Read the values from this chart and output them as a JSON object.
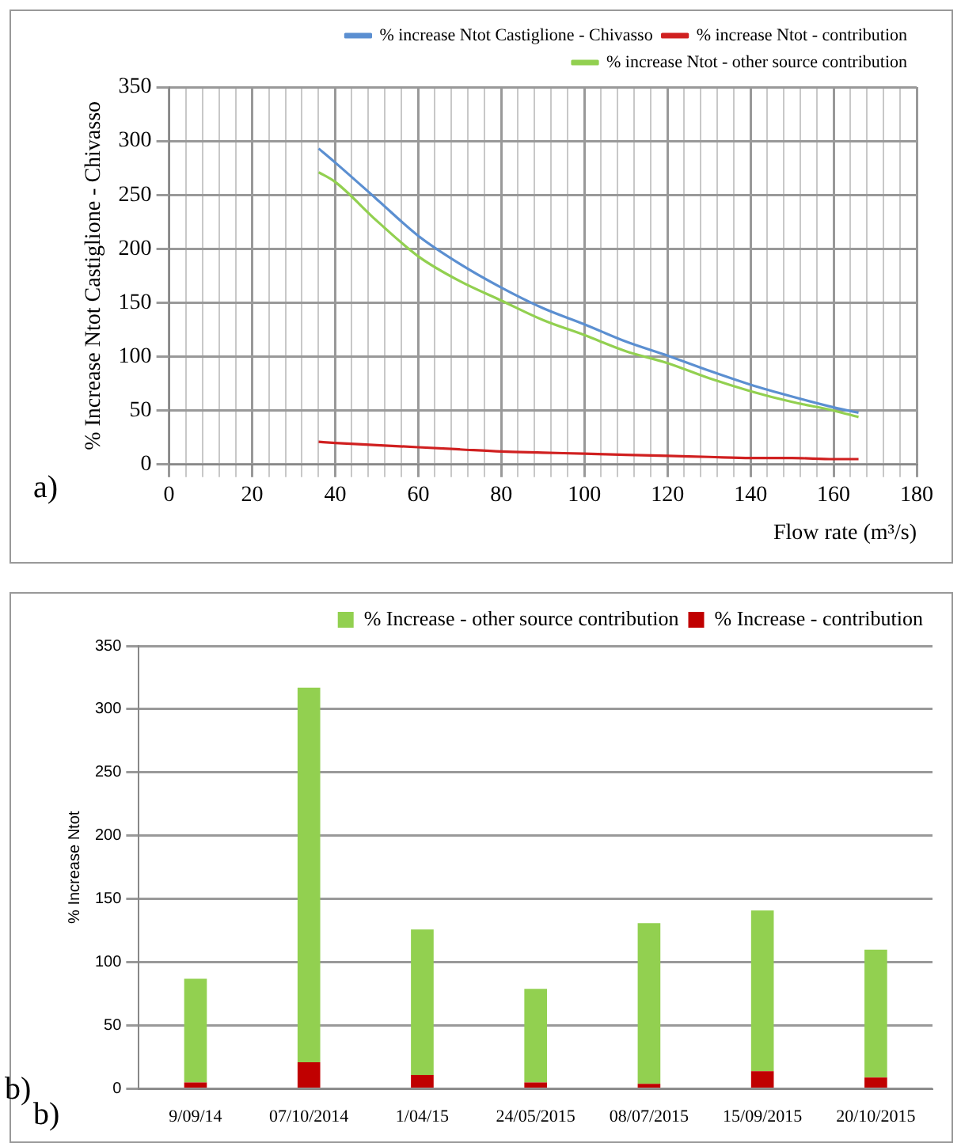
{
  "chart_data": [
    {
      "type": "line",
      "ylabel": "% Increase Ntot Castiglione - Chivasso",
      "xlabel": "Flow rate (m³/s)",
      "annotations": [
        "a)"
      ],
      "xlim": [
        0,
        180
      ],
      "xticks": [
        0,
        {
          "value": 4,
          "label": null
        },
        {
          "value": 8,
          "label": null
        },
        {
          "value": 12,
          "label": null
        },
        {
          "value": 16,
          "label": null
        },
        20,
        {
          "value": 24,
          "label": null
        },
        {
          "value": 28,
          "label": null
        },
        {
          "value": 32,
          "label": null
        },
        {
          "value": 36,
          "label": null
        },
        40,
        {
          "value": 44,
          "label": null
        },
        {
          "value": 48,
          "label": null
        },
        {
          "value": 52,
          "label": null
        },
        {
          "value": 56,
          "label": null
        },
        60,
        {
          "value": 64,
          "label": null
        },
        {
          "value": 68,
          "label": null
        },
        {
          "value": 72,
          "label": null
        },
        {
          "value": 76,
          "label": null
        },
        80,
        {
          "value": 84,
          "label": null
        },
        {
          "value": 88,
          "label": null
        },
        {
          "value": 92,
          "label": null
        },
        {
          "value": 96,
          "label": null
        },
        100,
        {
          "value": 104,
          "label": null
        },
        {
          "value": 108,
          "label": null
        },
        {
          "value": 112,
          "label": null
        },
        {
          "value": 116,
          "label": null
        },
        120,
        {
          "value": 124,
          "label": null
        },
        {
          "value": 128,
          "label": null
        },
        {
          "value": 132,
          "label": null
        },
        {
          "value": 136,
          "label": null
        },
        140,
        {
          "value": 144,
          "label": null
        },
        {
          "value": 148,
          "label": null
        },
        {
          "value": 152,
          "label": null
        },
        {
          "value": 156,
          "label": null
        },
        160,
        {
          "value": 164,
          "label": null
        },
        {
          "value": 168,
          "label": null
        },
        {
          "value": 172,
          "label": null
        },
        {
          "value": 176,
          "label": null
        },
        180
      ],
      "ylim": [
        0,
        350
      ],
      "yticks": [
        0,
        50,
        100,
        150,
        200,
        250,
        300,
        350
      ],
      "grid": true,
      "legend": "top right",
      "marker": "none",
      "line_style": "solid",
      "x": [
        36,
        40,
        50,
        60,
        70,
        80,
        90,
        100,
        110,
        120,
        130,
        140,
        150,
        160,
        166
      ],
      "series": [
        {
          "name": "% increase Ntot Castiglione - Chivasso",
          "color": "#5b8fd1",
          "values": [
            293,
            280,
            246,
            212,
            186,
            164,
            145,
            130,
            114,
            101,
            87,
            74,
            63,
            53,
            48
          ]
        },
        {
          "name": "% increase Ntot - contribution",
          "color": "#d02020",
          "values": [
            21,
            20,
            18,
            16,
            14,
            12,
            11,
            10,
            9,
            8,
            7,
            6,
            6,
            5,
            5
          ]
        },
        {
          "name": "% increase Ntot - other source contribution",
          "color": "#92d050",
          "values": [
            271,
            262,
            226,
            193,
            170,
            152,
            134,
            120,
            105,
            94,
            80,
            68,
            58,
            50,
            44
          ]
        }
      ]
    },
    {
      "type": "bar",
      "stacked": true,
      "ylabel": "% Increase Ntot",
      "annotations": [
        "b)",
        "b)"
      ],
      "categories": [
        "9/09/14",
        "07/10/2014",
        "1/04/15",
        "24/05/2015",
        "08/07/2015",
        "15/09/2015",
        "20/10/2015"
      ],
      "ylim": [
        0,
        350
      ],
      "yticks": [
        0,
        50,
        100,
        150,
        200,
        250,
        300,
        350
      ],
      "grid": "y",
      "legend": "top right",
      "series": [
        {
          "name": "% Increase - contribution",
          "color": "#c00000",
          "values": [
            5,
            21,
            11,
            5,
            4,
            14,
            9
          ]
        },
        {
          "name": "% Increase - other source contribution",
          "color": "#92d050",
          "values": [
            82,
            296,
            115,
            74,
            127,
            127,
            101
          ]
        }
      ]
    }
  ]
}
